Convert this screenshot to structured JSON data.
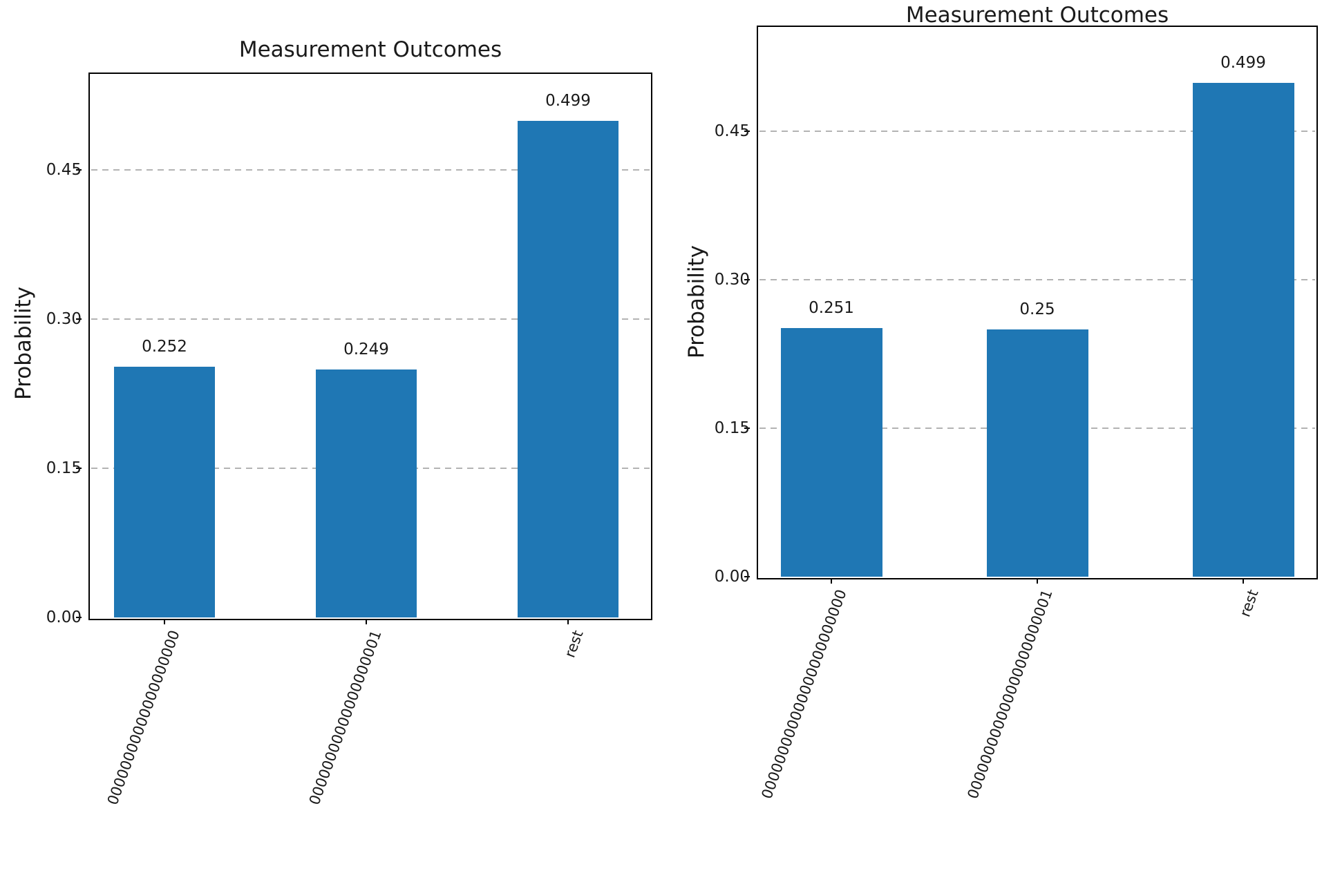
{
  "figure": {
    "background": "#ffffff",
    "text_color": "#1a1a1a",
    "grid_color": "#b3b3b3"
  },
  "chart_data": [
    {
      "type": "bar",
      "title": "Measurement Outcomes",
      "ylabel": "Probability",
      "xlabel": "",
      "categories": [
        "00000000000000000000",
        "00000000000000000001",
        "rest"
      ],
      "values": [
        0.252,
        0.249,
        0.499
      ],
      "value_labels": [
        "0.252",
        "0.249",
        "0.499"
      ],
      "yticks": [
        0,
        0.15,
        0.3,
        0.45
      ],
      "ytick_labels": [
        "0.00",
        "0.15",
        "0.30",
        "0.45"
      ],
      "ylim": [
        0,
        0.5465
      ],
      "bar_color": "#1f77b4",
      "grid": "horizontal-dashed",
      "legend": "none",
      "xtick_rotation": 70
    },
    {
      "type": "bar",
      "title": "Measurement Outcomes",
      "ylabel": "Probability",
      "xlabel": "",
      "categories": [
        "000000000000000000000000",
        "000000000000000000000001",
        "rest"
      ],
      "values": [
        0.251,
        0.25,
        0.499
      ],
      "value_labels": [
        "0.251",
        "0.25",
        "0.499"
      ],
      "yticks": [
        0,
        0.15,
        0.3,
        0.45
      ],
      "ytick_labels": [
        "0.00",
        "0.15",
        "0.30",
        "0.45"
      ],
      "ylim": [
        0,
        0.5555
      ],
      "bar_color": "#1f77b4",
      "grid": "horizontal-dashed",
      "legend": "none",
      "xtick_rotation": 70
    }
  ]
}
